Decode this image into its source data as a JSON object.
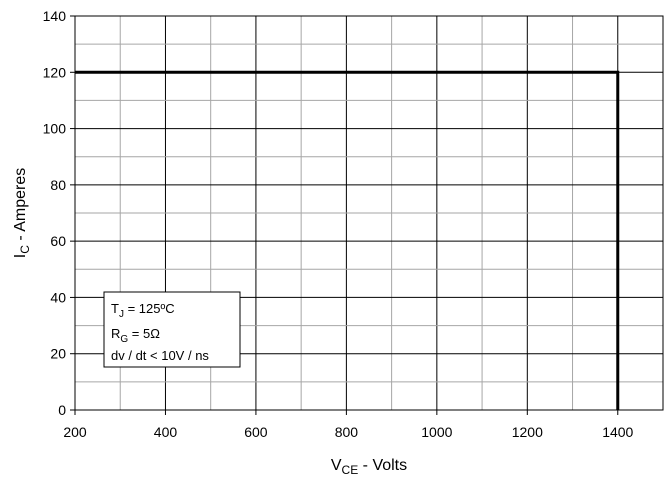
{
  "chart_data": {
    "type": "line",
    "title": "",
    "xlabel": {
      "main": "V",
      "sub": "CE",
      "rest": " - Volts"
    },
    "ylabel": {
      "main": "I",
      "sub": "C",
      "rest": " - Amperes"
    },
    "xlim": [
      200,
      1500
    ],
    "ylim": [
      0,
      140
    ],
    "x_ticks": [
      200,
      400,
      600,
      800,
      1000,
      1200,
      1400
    ],
    "y_ticks": [
      0,
      20,
      40,
      60,
      80,
      100,
      120,
      140
    ],
    "x_minor_step": 100,
    "y_minor_step": 10,
    "grid": true,
    "series": [
      {
        "x": [
          200,
          1400,
          1400
        ],
        "y": [
          120,
          120,
          0
        ]
      }
    ],
    "annotation": {
      "lines": [
        {
          "main": "T",
          "sub": "J",
          "rest": " = 125ºC"
        },
        {
          "main": "R",
          "sub": "G",
          "rest": " = 5Ω"
        },
        {
          "main": "dv / dt < 10V / ns",
          "sub": "",
          "rest": ""
        }
      ]
    }
  }
}
